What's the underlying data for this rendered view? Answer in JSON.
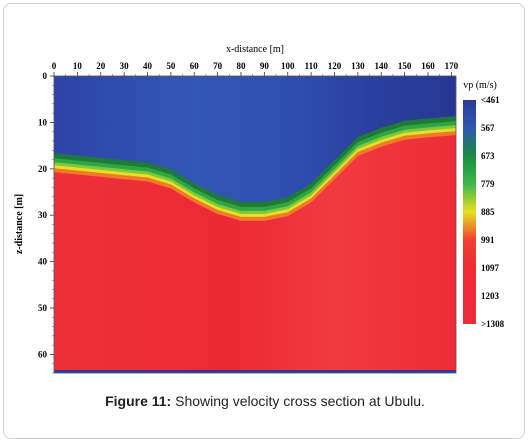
{
  "figure_caption": {
    "label": "Figure 11:",
    "text": "Showing velocity cross section at Ubulu."
  },
  "chart_data": {
    "type": "heatmap",
    "title": "",
    "xlabel": "x-distance [m]",
    "ylabel": "z-distance [m]",
    "xlim": [
      0,
      172
    ],
    "ylim": [
      0,
      64
    ],
    "y_inverted": true,
    "x_axis_position": "top",
    "x_ticks": [
      0,
      10,
      20,
      30,
      40,
      50,
      60,
      70,
      80,
      90,
      100,
      110,
      120,
      130,
      140,
      150,
      160,
      170
    ],
    "y_ticks": [
      0,
      10,
      20,
      30,
      40,
      50,
      60
    ],
    "colorbar": {
      "title": "vp (m/s)",
      "labels": [
        "<461",
        "567",
        "673",
        "779",
        "885",
        "991",
        "1097",
        "1203",
        ">1308"
      ],
      "colors": [
        "#2a3a99",
        "#2f58b4",
        "#1a8c3e",
        "#3cb84a",
        "#e8e020",
        "#f04030",
        "#ee2a35",
        "#ee2a38",
        "#ec2a3a"
      ],
      "placement": "right"
    },
    "interface_boundary": {
      "description_units": "x in m, z in m",
      "x": [
        0,
        10,
        20,
        30,
        40,
        50,
        60,
        70,
        80,
        90,
        100,
        110,
        120,
        130,
        140,
        150,
        160,
        172
      ],
      "z": [
        17.5,
        18,
        18.5,
        19,
        19.5,
        21,
        24,
        26.5,
        28,
        28,
        27,
        24,
        19,
        14,
        12,
        10.5,
        10,
        9.5
      ]
    }
  }
}
